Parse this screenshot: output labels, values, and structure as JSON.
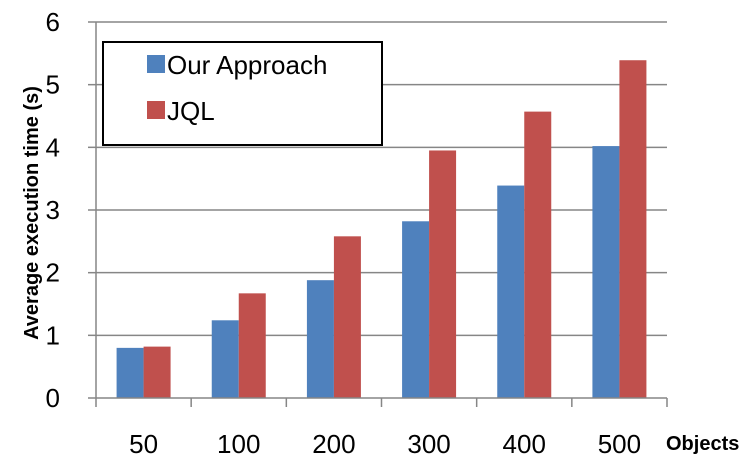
{
  "chart_data": {
    "type": "bar",
    "title": "",
    "xlabel": "Objects",
    "ylabel": "Average execution time (s)",
    "categories": [
      "50",
      "100",
      "200",
      "300",
      "400",
      "500"
    ],
    "ylim": [
      0,
      6
    ],
    "yticks": [
      0,
      1,
      2,
      3,
      4,
      5,
      6
    ],
    "grid": true,
    "legend_position": "top-left",
    "series": [
      {
        "name": "Our Approach",
        "color": "#4f81bd",
        "values": [
          0.8,
          1.24,
          1.88,
          2.82,
          3.39,
          4.02
        ]
      },
      {
        "name": "JQL",
        "color": "#c0504d",
        "values": [
          0.82,
          1.67,
          2.58,
          3.95,
          4.57,
          5.39
        ]
      }
    ]
  }
}
